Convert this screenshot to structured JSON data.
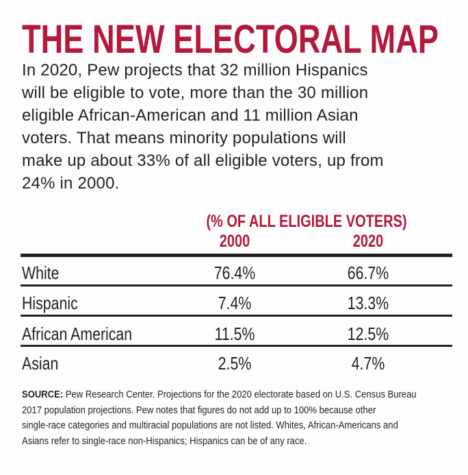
{
  "title": "THE NEW ELECTORAL MAP",
  "intro_lines": [
    "In 2020, Pew projects that 32 million Hispanics",
    "will be eligible to vote, more than the 30 million",
    "eligible African-American and 11 million Asian",
    "voters. That means minority populations will",
    "make up about 33% of all eligible voters, up from",
    "24% in 2000."
  ],
  "colors": {
    "accent": "#b3193a",
    "text": "#231f20"
  },
  "chart_data": {
    "type": "table",
    "subtitle": "(% OF ALL ELIGIBLE VOTERS)",
    "columns": [
      "2000",
      "2020"
    ],
    "rows": [
      {
        "label": "White",
        "values": [
          "76.4%",
          "66.7%"
        ]
      },
      {
        "label": "Hispanic",
        "values": [
          "7.4%",
          "13.3%"
        ]
      },
      {
        "label": "African American",
        "values": [
          "11.5%",
          "12.5%"
        ]
      },
      {
        "label": "Asian",
        "values": [
          "2.5%",
          "4.7%"
        ]
      }
    ]
  },
  "source": {
    "label": "SOURCE:",
    "lines": [
      " Pew Research Center. Projections for the 2020 electorate based on U.S. Census Bureau",
      "2017 population projections. Pew notes that figures do not add up to 100% because other",
      "single-race categories and multiracial populations are not listed. Whites, African-Americans and",
      "Asians refer to single-race non-Hispanics; Hispanics can be of any race."
    ]
  }
}
